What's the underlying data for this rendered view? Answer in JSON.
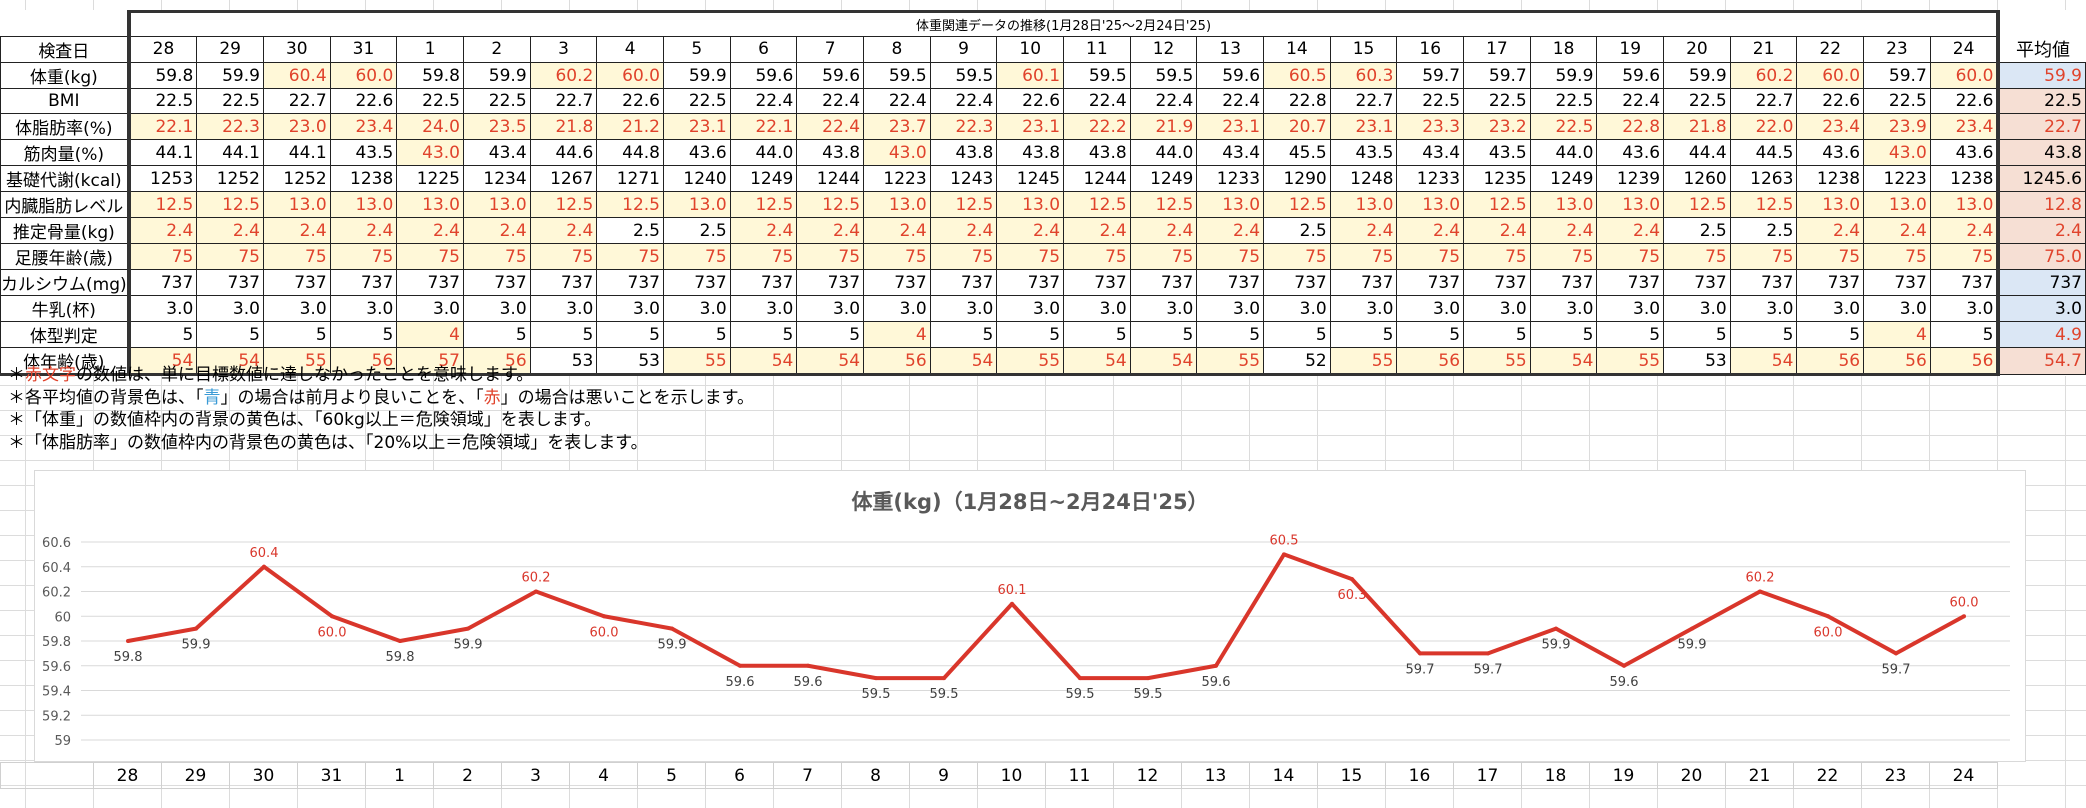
{
  "table": {
    "title": "体重関連データの推移(1月28日'25～2月24日'25)",
    "date_label": "検査日",
    "avg_label": "平均値",
    "dates": [
      "28",
      "29",
      "30",
      "31",
      "1",
      "2",
      "3",
      "4",
      "5",
      "6",
      "7",
      "8",
      "9",
      "10",
      "11",
      "12",
      "13",
      "14",
      "15",
      "16",
      "17",
      "18",
      "19",
      "20",
      "21",
      "22",
      "23",
      "24"
    ],
    "rows": [
      {
        "label": "体重(kg)",
        "size": "l",
        "values": [
          "59.8",
          "59.9",
          "60.4",
          "60.0",
          "59.8",
          "59.9",
          "60.2",
          "60.0",
          "59.9",
          "59.6",
          "59.6",
          "59.5",
          "59.5",
          "60.1",
          "59.5",
          "59.5",
          "59.6",
          "60.5",
          "60.3",
          "59.7",
          "59.7",
          "59.9",
          "59.6",
          "59.9",
          "60.2",
          "60.0",
          "59.7",
          "60.0"
        ],
        "red": [
          2,
          3,
          6,
          7,
          13,
          17,
          18,
          24,
          25,
          27
        ],
        "yellow": [
          2,
          3,
          6,
          7,
          13,
          17,
          18,
          24,
          25,
          27
        ],
        "avg": "59.9",
        "avg_color": "blue",
        "avg_red": true
      },
      {
        "label": "BMI",
        "size": "l",
        "values": [
          "22.5",
          "22.5",
          "22.7",
          "22.6",
          "22.5",
          "22.5",
          "22.7",
          "22.6",
          "22.5",
          "22.4",
          "22.4",
          "22.4",
          "22.4",
          "22.6",
          "22.4",
          "22.4",
          "22.4",
          "22.8",
          "22.7",
          "22.5",
          "22.5",
          "22.5",
          "22.4",
          "22.5",
          "22.7",
          "22.6",
          "22.5",
          "22.6"
        ],
        "red": [],
        "yellow": [],
        "avg": "22.5",
        "avg_color": "red",
        "avg_red": false
      },
      {
        "label": "体脂肪率(%)",
        "size": "m",
        "values": [
          "22.1",
          "22.3",
          "23.0",
          "23.4",
          "24.0",
          "23.5",
          "21.8",
          "21.2",
          "23.1",
          "22.1",
          "22.4",
          "23.7",
          "22.3",
          "23.1",
          "22.2",
          "21.9",
          "23.1",
          "20.7",
          "23.1",
          "23.3",
          "23.2",
          "22.5",
          "22.8",
          "21.8",
          "22.0",
          "23.4",
          "23.9",
          "23.4"
        ],
        "red": "all",
        "yellow": "all",
        "avg": "22.7",
        "avg_color": "red",
        "avg_red": true
      },
      {
        "label": "筋肉量(%)",
        "size": "m",
        "values": [
          "44.1",
          "44.1",
          "44.1",
          "43.5",
          "43.0",
          "43.4",
          "44.6",
          "44.8",
          "43.6",
          "44.0",
          "43.8",
          "43.0",
          "43.8",
          "43.8",
          "43.8",
          "44.0",
          "43.4",
          "45.5",
          "43.5",
          "43.4",
          "43.5",
          "44.0",
          "43.6",
          "44.4",
          "44.5",
          "43.6",
          "43.0",
          "43.6"
        ],
        "red": [
          4,
          11,
          26
        ],
        "yellow": [
          4,
          11,
          26
        ],
        "avg": "43.8",
        "avg_color": "red",
        "avg_red": false
      },
      {
        "label": "基礎代謝(kcal)",
        "size": "s",
        "values": [
          "1253",
          "1252",
          "1252",
          "1238",
          "1225",
          "1234",
          "1267",
          "1271",
          "1240",
          "1249",
          "1244",
          "1223",
          "1243",
          "1245",
          "1244",
          "1249",
          "1233",
          "1290",
          "1248",
          "1233",
          "1235",
          "1249",
          "1239",
          "1260",
          "1263",
          "1238",
          "1223",
          "1238"
        ],
        "red": [],
        "yellow": [],
        "avg": "1245.6",
        "avg_color": "red",
        "avg_red": false
      },
      {
        "label": "内臓脂肪レベル",
        "size": "s",
        "values": [
          "12.5",
          "12.5",
          "13.0",
          "13.0",
          "13.0",
          "13.0",
          "12.5",
          "12.5",
          "13.0",
          "12.5",
          "12.5",
          "13.0",
          "12.5",
          "13.0",
          "12.5",
          "12.5",
          "13.0",
          "12.5",
          "13.0",
          "13.0",
          "12.5",
          "13.0",
          "13.0",
          "12.5",
          "12.5",
          "13.0",
          "13.0",
          "13.0"
        ],
        "red": "all",
        "yellow": "all",
        "avg": "12.8",
        "avg_color": "red",
        "avg_red": true
      },
      {
        "label": "推定骨量(kg)",
        "size": "s",
        "values": [
          "2.4",
          "2.4",
          "2.4",
          "2.4",
          "2.4",
          "2.4",
          "2.4",
          "2.5",
          "2.5",
          "2.4",
          "2.4",
          "2.4",
          "2.4",
          "2.4",
          "2.4",
          "2.4",
          "2.4",
          "2.5",
          "2.4",
          "2.4",
          "2.4",
          "2.4",
          "2.4",
          "2.5",
          "2.5",
          "2.4",
          "2.4",
          "2.4"
        ],
        "red": [
          0,
          1,
          2,
          3,
          4,
          5,
          6,
          9,
          10,
          11,
          12,
          13,
          14,
          15,
          16,
          18,
          19,
          20,
          21,
          22,
          25,
          26,
          27
        ],
        "yellow": [
          0,
          1,
          2,
          3,
          4,
          5,
          6,
          9,
          10,
          11,
          12,
          13,
          14,
          15,
          16,
          18,
          19,
          20,
          21,
          22,
          25,
          26,
          27
        ],
        "avg": "2.4",
        "avg_color": "red",
        "avg_red": true
      },
      {
        "label": "足腰年齢(歳)",
        "size": "s",
        "values": [
          "75",
          "75",
          "75",
          "75",
          "75",
          "75",
          "75",
          "75",
          "75",
          "75",
          "75",
          "75",
          "75",
          "75",
          "75",
          "75",
          "75",
          "75",
          "75",
          "75",
          "75",
          "75",
          "75",
          "75",
          "75",
          "75",
          "75",
          "75"
        ],
        "red": "all",
        "yellow": "all",
        "avg": "75.0",
        "avg_color": "red",
        "avg_red": true
      },
      {
        "label": "カルシウム(mg)",
        "size": "s",
        "values": [
          "737",
          "737",
          "737",
          "737",
          "737",
          "737",
          "737",
          "737",
          "737",
          "737",
          "737",
          "737",
          "737",
          "737",
          "737",
          "737",
          "737",
          "737",
          "737",
          "737",
          "737",
          "737",
          "737",
          "737",
          "737",
          "737",
          "737",
          "737"
        ],
        "red": [],
        "yellow": [],
        "avg": "737",
        "avg_color": "blue",
        "avg_red": false
      },
      {
        "label": "牛乳(杯)",
        "size": "l",
        "values": [
          "3.0",
          "3.0",
          "3.0",
          "3.0",
          "3.0",
          "3.0",
          "3.0",
          "3.0",
          "3.0",
          "3.0",
          "3.0",
          "3.0",
          "3.0",
          "3.0",
          "3.0",
          "3.0",
          "3.0",
          "3.0",
          "3.0",
          "3.0",
          "3.0",
          "3.0",
          "3.0",
          "3.0",
          "3.0",
          "3.0",
          "3.0",
          "3.0"
        ],
        "red": [],
        "yellow": [],
        "avg": "3.0",
        "avg_color": "blue",
        "avg_red": false
      },
      {
        "label": "体型判定",
        "size": "l",
        "values": [
          "5",
          "5",
          "5",
          "5",
          "4",
          "5",
          "5",
          "5",
          "5",
          "5",
          "5",
          "4",
          "5",
          "5",
          "5",
          "5",
          "5",
          "5",
          "5",
          "5",
          "5",
          "5",
          "5",
          "5",
          "5",
          "5",
          "4",
          "5"
        ],
        "red": [
          4,
          11,
          26
        ],
        "yellow": [
          4,
          11,
          26
        ],
        "avg": "4.9",
        "avg_color": "blue",
        "avg_red": true
      },
      {
        "label": "体年齢(歳)",
        "size": "l",
        "values": [
          "54",
          "54",
          "55",
          "56",
          "57",
          "56",
          "53",
          "53",
          "55",
          "54",
          "54",
          "56",
          "54",
          "55",
          "54",
          "54",
          "55",
          "52",
          "55",
          "56",
          "55",
          "54",
          "55",
          "53",
          "54",
          "56",
          "56",
          "56"
        ],
        "red": [
          0,
          1,
          2,
          3,
          4,
          5,
          8,
          9,
          10,
          11,
          12,
          13,
          14,
          15,
          16,
          18,
          19,
          20,
          21,
          22,
          24,
          25,
          26,
          27
        ],
        "yellow": [
          0,
          1,
          2,
          3,
          4,
          5,
          8,
          9,
          10,
          11,
          12,
          13,
          14,
          15,
          16,
          18,
          19,
          20,
          21,
          22,
          24,
          25,
          26,
          27
        ],
        "avg": "54.7",
        "avg_color": "red",
        "avg_red": true
      }
    ]
  },
  "notes": {
    "n1_pre": "＊",
    "n1_red": "赤文字",
    "n1_post": "の数値は、単に目標数値に達しなかったことを意味します。",
    "n2_pre": "＊各平均値の背景色は、「",
    "n2_blue": "青",
    "n2_mid": "」の場合は前月より良いことを、「",
    "n2_red": "赤",
    "n2_post": "」の場合は悪いことを示します。",
    "n3": "＊「体重」の数値枠内の背景の黄色は、「60kg以上＝危険領域」を表します。",
    "n4": "＊「体脂肪率」の数値枠内の背景色の黄色は、「20%以上＝危険領域」を表します。"
  },
  "colors": {
    "line": "#d9362b",
    "label_red": "#d9362b",
    "yellow": "#fff8d8",
    "avg_blue": "#dbe7f5",
    "avg_red": "#f6dfd4"
  },
  "chart_data": {
    "type": "line",
    "title": "体重(kg)（1月28日~2月24日'25）",
    "categories": [
      "28",
      "29",
      "30",
      "31",
      "1",
      "2",
      "3",
      "4",
      "5",
      "6",
      "7",
      "8",
      "9",
      "10",
      "11",
      "12",
      "13",
      "14",
      "15",
      "16",
      "17",
      "18",
      "19",
      "20",
      "21",
      "22",
      "23",
      "24"
    ],
    "values": [
      59.8,
      59.9,
      60.4,
      60.0,
      59.8,
      59.9,
      60.2,
      60.0,
      59.9,
      59.6,
      59.6,
      59.5,
      59.5,
      60.1,
      59.5,
      59.5,
      59.6,
      60.5,
      60.3,
      59.7,
      59.7,
      59.9,
      59.6,
      59.9,
      60.2,
      60.0,
      59.7,
      60.0
    ],
    "point_labels": [
      "59.8",
      "59.9",
      "60.4",
      "60.0",
      "59.8",
      "59.9",
      "60.2",
      "60.0",
      "59.9",
      "59.6",
      "59.6",
      "59.5",
      "59.5",
      "60.1",
      "59.5",
      "59.5",
      "59.6",
      "60.5",
      "60.3",
      "59.7",
      "59.7",
      "59.9",
      "59.6",
      "59.9",
      "60.2",
      "60.0",
      "59.7",
      "60.0"
    ],
    "ylim": [
      59,
      60.6
    ],
    "yticks": [
      "60.6",
      "60.4",
      "60.2",
      "60",
      "59.8",
      "59.6",
      "59.4",
      "59.2",
      "59"
    ],
    "ytick_values": [
      60.6,
      60.4,
      60.2,
      60,
      59.8,
      59.6,
      59.4,
      59.2,
      59
    ],
    "grid": true,
    "legend": "none"
  }
}
